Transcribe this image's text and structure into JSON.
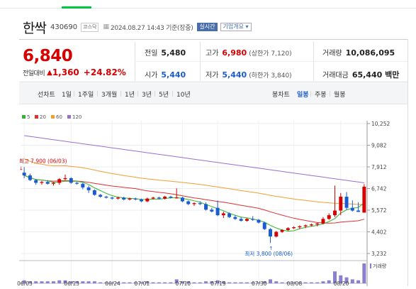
{
  "stock": {
    "name": "한싹",
    "code": "430690",
    "market": "코스닥",
    "datetime": "2024.08.27 14:43 기준(장중)",
    "realtime_label": "실시간",
    "overview_label": "기업개요 ▾"
  },
  "price": {
    "current": "6,840",
    "change_label": "전일대비",
    "change_arrow": "▲",
    "change": "1,360",
    "change_pct": "+24.82%"
  },
  "stats": {
    "prev_close_label": "전일",
    "prev_close": "5,480",
    "high_label": "고가",
    "high": "6,980",
    "high_limit": "(상한가 7,120)",
    "volume_label": "거래량",
    "volume": "10,086,095",
    "open_label": "시가",
    "open": "5,440",
    "low_label": "저가",
    "low": "5,440",
    "low_limit": "(하한가 3,840)",
    "amount_label": "거래대금",
    "amount": "65,440 백만"
  },
  "periods": {
    "line_chart": "선차트",
    "items": [
      "1일",
      "1주일",
      "3개월",
      "1년",
      "3년",
      "5년",
      "10년"
    ],
    "candle_label": "봉차트",
    "candle_items": [
      "일봉",
      "주봉",
      "월봉"
    ],
    "active_candle": "일봉"
  },
  "colors": {
    "up": "#d60000",
    "down": "#1a5ccf",
    "ma5": "#2fb52f",
    "ma20": "#e03030",
    "ma60": "#f0a030",
    "ma120": "#9b6ed0"
  },
  "chart_data": {
    "type": "candlestick",
    "legend": [
      {
        "name": "5",
        "color": "#2fb52f"
      },
      {
        "name": "20",
        "color": "#e03030"
      },
      {
        "name": "60",
        "color": "#f0a030"
      },
      {
        "name": "120",
        "color": "#9b6ed0"
      }
    ],
    "y_ticks": [
      "10,252",
      "9,082",
      "7,912",
      "6,742",
      "5,572",
      "4,402",
      "3,232"
    ],
    "ylim": [
      3232,
      10252
    ],
    "x_ticks": [
      "06/03",
      "06/13",
      "06/24",
      "07/01",
      "07/10",
      "07/19",
      "07/30",
      "08/08",
      "08/20"
    ],
    "x_tick_index": [
      0,
      8,
      15,
      20,
      27,
      33,
      40,
      46,
      54
    ],
    "high_annotation": "최고 7,900 (06/03)",
    "low_annotation": "최저 3,800 (08/06)",
    "volume_label": "거래량",
    "candles": [
      [
        7600,
        7900,
        7300,
        7450
      ],
      [
        7450,
        7550,
        7150,
        7200
      ],
      [
        7200,
        7250,
        6950,
        7050
      ],
      [
        7050,
        7150,
        6950,
        7100
      ],
      [
        7100,
        7200,
        6950,
        7000
      ],
      [
        7000,
        7100,
        6900,
        7050
      ],
      [
        7050,
        7300,
        6950,
        7250
      ],
      [
        7250,
        7500,
        7200,
        7300
      ],
      [
        7300,
        7350,
        7000,
        7050
      ],
      [
        7050,
        7100,
        6950,
        7000
      ],
      [
        7000,
        7050,
        6700,
        6800
      ],
      [
        6800,
        6900,
        6500,
        6650
      ],
      [
        6650,
        6700,
        6350,
        6400
      ],
      [
        6400,
        6450,
        6250,
        6300
      ],
      [
        6300,
        6350,
        6200,
        6250
      ],
      [
        6250,
        6300,
        6150,
        6200
      ],
      [
        6200,
        6300,
        6150,
        6250
      ],
      [
        6250,
        6300,
        6100,
        6150
      ],
      [
        6150,
        6250,
        6100,
        6200
      ],
      [
        6200,
        6250,
        6100,
        6150
      ],
      [
        6150,
        6200,
        6000,
        6050
      ],
      [
        6050,
        6250,
        6000,
        6200
      ],
      [
        6200,
        6300,
        6150,
        6250
      ],
      [
        6250,
        6300,
        6150,
        6200
      ],
      [
        6200,
        6350,
        6150,
        6300
      ],
      [
        6300,
        6350,
        6200,
        6250
      ],
      [
        6250,
        6750,
        6200,
        6250
      ],
      [
        6250,
        6300,
        6000,
        6050
      ],
      [
        6050,
        6100,
        5850,
        5900
      ],
      [
        5900,
        6000,
        5800,
        5950
      ],
      [
        5950,
        6050,
        5850,
        5900
      ],
      [
        5900,
        6000,
        5550,
        5600
      ],
      [
        5600,
        5700,
        5450,
        5500
      ],
      [
        5700,
        6100,
        5250,
        5300
      ],
      [
        5300,
        5500,
        5150,
        5400
      ],
      [
        5400,
        5450,
        5150,
        5200
      ],
      [
        5200,
        5300,
        5050,
        5100
      ],
      [
        5100,
        5200,
        4950,
        5000
      ],
      [
        5000,
        5150,
        4950,
        5100
      ],
      [
        5100,
        5250,
        5000,
        5050
      ],
      [
        5050,
        5100,
        4850,
        4900
      ],
      [
        4900,
        4950,
        4500,
        4550
      ],
      [
        4550,
        4600,
        3800,
        4150
      ],
      [
        4150,
        4450,
        4100,
        4400
      ],
      [
        4400,
        4550,
        4350,
        4500
      ],
      [
        4500,
        4650,
        4450,
        4600
      ],
      [
        4600,
        4700,
        4550,
        4650
      ],
      [
        4650,
        4750,
        4550,
        4700
      ],
      [
        4700,
        4800,
        4600,
        4750
      ],
      [
        4750,
        4850,
        4700,
        4800
      ],
      [
        4800,
        4900,
        4700,
        4850
      ],
      [
        4850,
        5200,
        4800,
        5100
      ],
      [
        5100,
        5400,
        5050,
        5300
      ],
      [
        5300,
        6900,
        5200,
        5550
      ],
      [
        5550,
        6500,
        5300,
        6300
      ],
      [
        6300,
        6550,
        5600,
        5700
      ],
      [
        5700,
        6100,
        5500,
        5550
      ],
      [
        5550,
        6000,
        5480,
        5480
      ],
      [
        5440,
        6980,
        5440,
        6840
      ]
    ],
    "volume": [
      3,
      2,
      2,
      2,
      2,
      2,
      3,
      3,
      2,
      2,
      2,
      2,
      2,
      1,
      1,
      1,
      1,
      1,
      1,
      1,
      1,
      2,
      1,
      1,
      1,
      1,
      4,
      2,
      2,
      1,
      1,
      2,
      2,
      3,
      2,
      1,
      1,
      1,
      1,
      1,
      1,
      2,
      4,
      2,
      1,
      1,
      1,
      1,
      1,
      1,
      1,
      2,
      3,
      12,
      8,
      6,
      4,
      3,
      20
    ]
  }
}
